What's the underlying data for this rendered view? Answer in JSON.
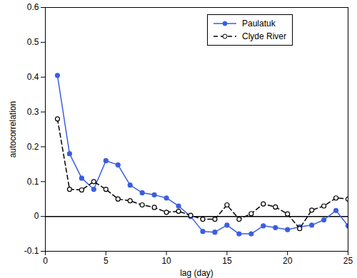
{
  "chart_data": {
    "type": "line",
    "x_label": "lag (day)",
    "y_label": "autocorrelation",
    "x": [
      1,
      2,
      3,
      4,
      5,
      6,
      7,
      8,
      9,
      10,
      11,
      12,
      13,
      14,
      15,
      16,
      17,
      18,
      19,
      20,
      21,
      22,
      23,
      24,
      25
    ],
    "series": [
      {
        "name": "Paulatuk",
        "color": "#3b5ee0",
        "marker": "circle",
        "line_style": "solid",
        "values": [
          0.405,
          0.18,
          0.11,
          0.078,
          0.16,
          0.148,
          0.09,
          0.068,
          0.062,
          0.053,
          0.03,
          0.0,
          -0.043,
          -0.045,
          -0.025,
          -0.05,
          -0.05,
          -0.027,
          -0.032,
          -0.038,
          -0.03,
          -0.025,
          -0.01,
          0.017,
          -0.027
        ]
      },
      {
        "name": "Clyde River",
        "color": "#000000",
        "marker": "open_circle",
        "line_style": "dashed",
        "values": [
          0.28,
          0.078,
          0.076,
          0.1,
          0.078,
          0.05,
          0.045,
          0.033,
          0.026,
          0.012,
          0.015,
          0.003,
          -0.008,
          -0.008,
          0.033,
          -0.008,
          0.008,
          0.036,
          0.027,
          0.007,
          -0.035,
          0.018,
          0.03,
          0.053,
          0.05
        ]
      }
    ],
    "xlim": [
      0,
      25
    ],
    "xticks": [
      0,
      5,
      10,
      15,
      20,
      25
    ],
    "ylim": [
      -0.1,
      0.6
    ],
    "yticks": [
      -0.1,
      0,
      0.1,
      0.2,
      0.3,
      0.4,
      0.5,
      0.6
    ],
    "grid": false,
    "legend": "upper right"
  }
}
